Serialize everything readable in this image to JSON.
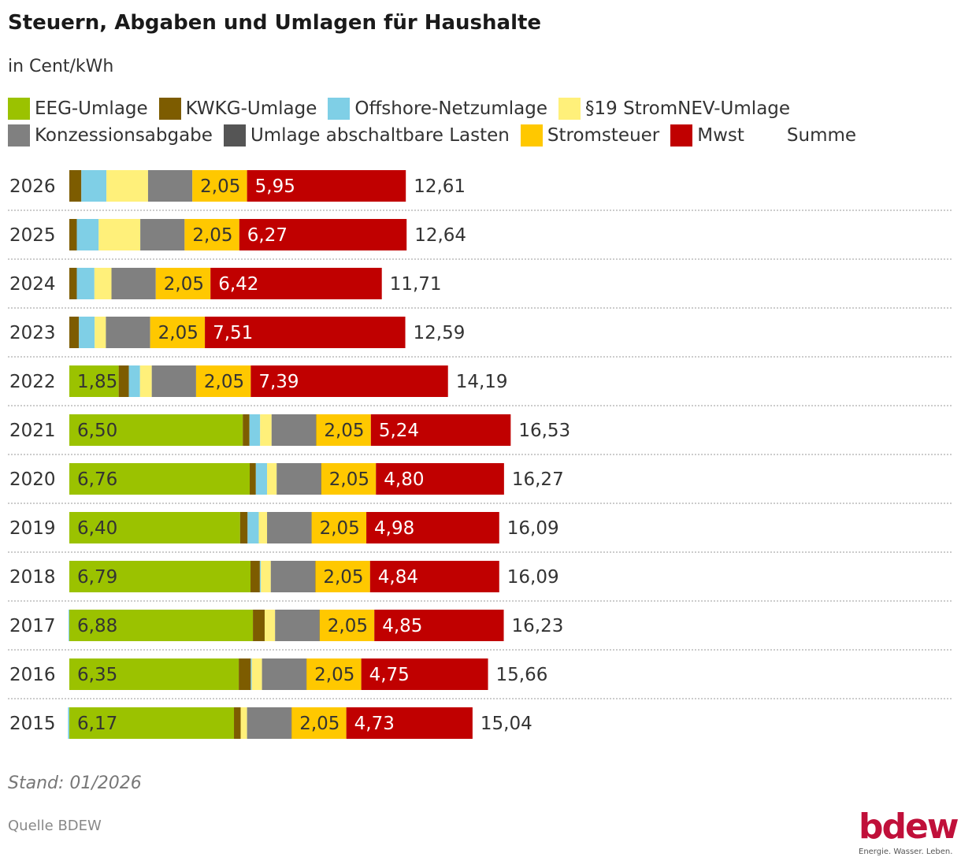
{
  "title": "Steuern, Abgaben und Umlagen für Haushalte",
  "subtitle": "in Cent/kWh",
  "footer": {
    "stand": "Stand: 01/2026",
    "source": "Quelle BDEW"
  },
  "logo": {
    "word": "bdew",
    "tagline": "Energie. Wasser. Leben."
  },
  "chart_data": {
    "type": "bar",
    "orientation": "horizontal",
    "stacked": true,
    "grid": false,
    "legend_position": "top",
    "total_label": "Summe",
    "categories": [
      "2026",
      "2025",
      "2024",
      "2023",
      "2022",
      "2021",
      "2020",
      "2019",
      "2018",
      "2017",
      "2016",
      "2015"
    ],
    "series": [
      {
        "name": "EEG-Umlage",
        "color": "#9bc200",
        "labelled": true,
        "label_color": "#333333",
        "values": [
          0,
          0,
          0,
          0,
          1.85,
          6.5,
          6.76,
          6.4,
          6.79,
          6.88,
          6.35,
          6.17
        ]
      },
      {
        "name": "KWKG-Umlage",
        "color": "#7d5c00",
        "values": [
          0.45,
          0.28,
          0.28,
          0.36,
          0.38,
          0.25,
          0.23,
          0.28,
          0.35,
          0.44,
          0.45,
          0.25
        ]
      },
      {
        "name": "Offshore-Netzumlage",
        "color": "#7fcfe6",
        "values": [
          0.94,
          0.82,
          0.66,
          0.59,
          0.42,
          0.4,
          0.42,
          0.42,
          0.04,
          -0.03,
          0.04,
          -0.05
        ]
      },
      {
        "name": "§19 StromNEV-Umlage",
        "color": "#fff07a",
        "values": [
          1.56,
          1.56,
          0.64,
          0.42,
          0.44,
          0.43,
          0.36,
          0.31,
          0.37,
          0.39,
          0.38,
          0.24
        ]
      },
      {
        "name": "Konzessionsabgabe",
        "color": "#808080",
        "values": [
          1.66,
          1.66,
          1.66,
          1.66,
          1.66,
          1.66,
          1.66,
          1.66,
          1.66,
          1.66,
          1.66,
          1.66
        ]
      },
      {
        "name": "Umlage abschaltbare Lasten",
        "color": "#555555",
        "values": [
          0,
          0,
          0,
          0,
          0,
          0.01,
          0.01,
          0.01,
          0.01,
          0.01,
          0.01,
          0.01
        ]
      },
      {
        "name": "Stromsteuer",
        "color": "#ffc800",
        "labelled": true,
        "label_color": "#333333",
        "values": [
          2.05,
          2.05,
          2.05,
          2.05,
          2.05,
          2.05,
          2.05,
          2.05,
          2.05,
          2.05,
          2.05,
          2.05
        ]
      },
      {
        "name": "Mwst",
        "color": "#c00000",
        "labelled": true,
        "label_color": "#ffffff",
        "values": [
          5.95,
          6.27,
          6.42,
          7.51,
          7.39,
          5.24,
          4.8,
          4.98,
          4.84,
          4.85,
          4.75,
          4.73
        ]
      }
    ],
    "totals": [
      12.61,
      12.64,
      11.71,
      12.59,
      14.19,
      16.53,
      16.27,
      16.09,
      16.09,
      16.23,
      15.66,
      15.04
    ],
    "xlim": [
      0,
      16.53
    ]
  }
}
